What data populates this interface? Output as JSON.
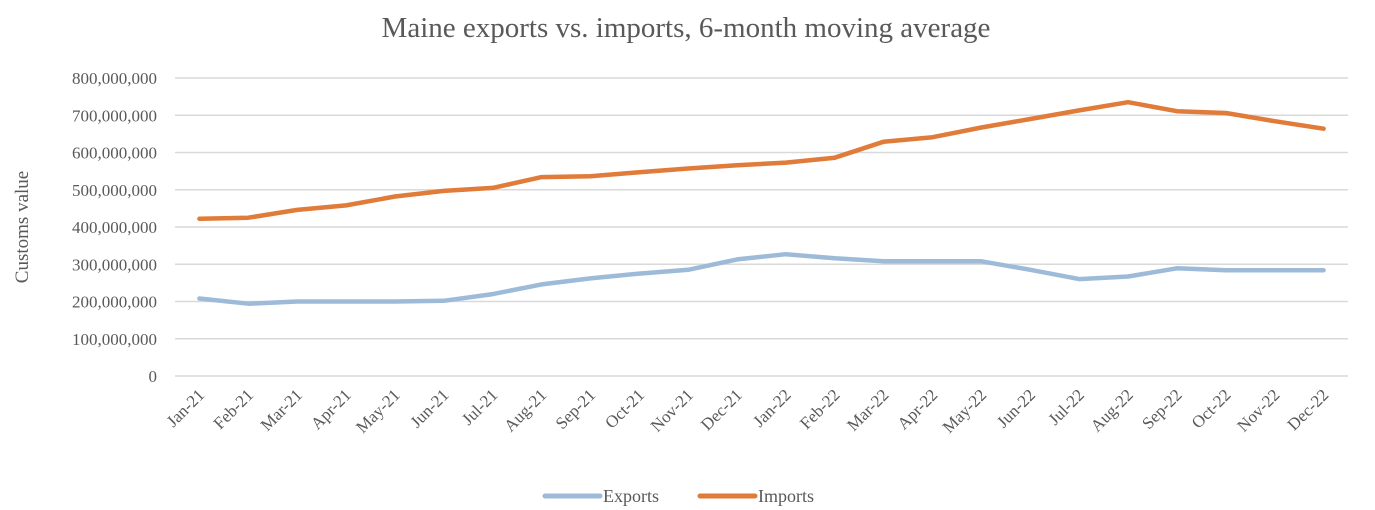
{
  "chart_data": {
    "type": "line",
    "title": "Maine exports vs. imports, 6-month moving average",
    "xlabel": "",
    "ylabel": "Customs value",
    "ylim": [
      0,
      800000000
    ],
    "yticks": [
      "0",
      "100,000,000",
      "200,000,000",
      "300,000,000",
      "400,000,000",
      "500,000,000",
      "600,000,000",
      "700,000,000",
      "800,000,000"
    ],
    "grid": true,
    "legend_position": "bottom",
    "categories": [
      "Jan-21",
      "Feb-21",
      "Mar-21",
      "Apr-21",
      "May-21",
      "Jun-21",
      "Jul-21",
      "Aug-21",
      "Sep-21",
      "Oct-21",
      "Nov-21",
      "Dec-21",
      "Jan-22",
      "Feb-22",
      "Mar-22",
      "Apr-22",
      "May-22",
      "Jun-22",
      "Jul-22",
      "Aug-22",
      "Sep-22",
      "Oct-22",
      "Nov-22",
      "Dec-22"
    ],
    "series": [
      {
        "name": "Exports",
        "color": "#9dbbd8",
        "values": [
          208000000,
          194000000,
          200000000,
          200000000,
          200000000,
          202000000,
          220000000,
          246000000,
          262000000,
          275000000,
          285000000,
          313000000,
          327000000,
          316000000,
          308000000,
          308000000,
          308000000,
          285000000,
          260000000,
          267000000,
          289000000,
          284000000,
          284000000,
          284000000
        ]
      },
      {
        "name": "Imports",
        "color": "#e07b39",
        "values": [
          422000000,
          425000000,
          446000000,
          458000000,
          482000000,
          497000000,
          505000000,
          534000000,
          536000000,
          547000000,
          557000000,
          566000000,
          573000000,
          586000000,
          629000000,
          641000000,
          667000000,
          690000000,
          713000000,
          735000000,
          711000000,
          706000000,
          684000000,
          664000000
        ]
      }
    ]
  }
}
